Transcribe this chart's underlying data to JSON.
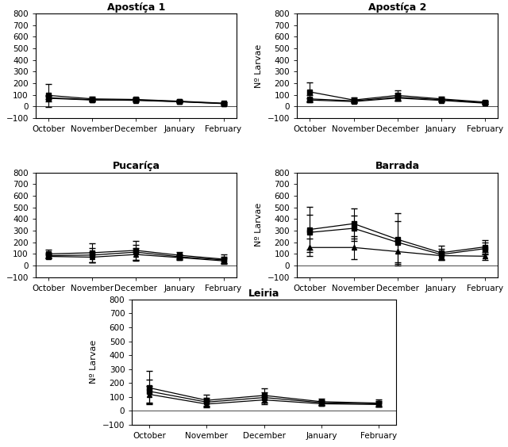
{
  "months": [
    "October",
    "November",
    "December",
    "January",
    "February"
  ],
  "subplots": [
    {
      "title": "Apostíça 1",
      "series": [
        {
          "y": [
            95,
            65,
            60,
            45,
            28
          ],
          "yerr": [
            100,
            20,
            20,
            10,
            10
          ],
          "marker": "s"
        },
        {
          "y": [
            70,
            55,
            55,
            42,
            25
          ],
          "yerr": [
            30,
            12,
            15,
            8,
            8
          ],
          "marker": "s"
        },
        {
          "y": [
            75,
            58,
            52,
            40,
            24
          ],
          "yerr": [
            15,
            10,
            12,
            6,
            6
          ],
          "marker": "^"
        }
      ]
    },
    {
      "title": "Apostíça 2",
      "series": [
        {
          "y": [
            125,
            55,
            95,
            65,
            38
          ],
          "yerr": [
            80,
            20,
            45,
            20,
            15
          ],
          "marker": "s"
        },
        {
          "y": [
            65,
            48,
            80,
            58,
            32
          ],
          "yerr": [
            30,
            15,
            30,
            15,
            10
          ],
          "marker": "s"
        },
        {
          "y": [
            55,
            42,
            72,
            52,
            28
          ],
          "yerr": [
            15,
            10,
            22,
            10,
            8
          ],
          "marker": "^"
        }
      ]
    },
    {
      "title": "Pucaríça",
      "series": [
        {
          "y": [
            100,
            110,
            130,
            88,
            55
          ],
          "yerr": [
            35,
            80,
            80,
            28,
            40
          ],
          "marker": "s"
        },
        {
          "y": [
            85,
            90,
            115,
            75,
            48
          ],
          "yerr": [
            25,
            60,
            65,
            22,
            30
          ],
          "marker": "s"
        },
        {
          "y": [
            78,
            72,
            95,
            68,
            40
          ],
          "yerr": [
            15,
            45,
            52,
            18,
            22
          ],
          "marker": "^"
        }
      ]
    },
    {
      "title": "Barrada",
      "series": [
        {
          "y": [
            310,
            360,
            225,
            110,
            160
          ],
          "yerr": [
            195,
            130,
            225,
            60,
            60
          ],
          "marker": "s"
        },
        {
          "y": [
            285,
            320,
            200,
            95,
            145
          ],
          "yerr": [
            150,
            110,
            185,
            45,
            50
          ],
          "marker": "s"
        },
        {
          "y": [
            155,
            155,
            120,
            85,
            80
          ],
          "yerr": [
            75,
            100,
            95,
            30,
            35
          ],
          "marker": "^"
        }
      ]
    },
    {
      "title": "Leiria",
      "series": [
        {
          "y": [
            165,
            75,
            110,
            65,
            55
          ],
          "yerr": [
            120,
            40,
            50,
            22,
            25
          ],
          "marker": "s"
        },
        {
          "y": [
            140,
            62,
            95,
            58,
            50
          ],
          "yerr": [
            85,
            30,
            38,
            18,
            18
          ],
          "marker": "s"
        },
        {
          "y": [
            118,
            48,
            78,
            50,
            45
          ],
          "yerr": [
            60,
            22,
            32,
            14,
            14
          ],
          "marker": "^"
        }
      ]
    }
  ],
  "ylim": [
    -100,
    800
  ],
  "yticks": [
    -100,
    0,
    100,
    200,
    300,
    400,
    500,
    600,
    700,
    800
  ],
  "line_color": "black",
  "marker_size": 4,
  "capsize": 3,
  "ylabel": "Nº Larvae",
  "background_color": "white",
  "title_fontsize": 9,
  "axis_fontsize": 7.5,
  "ylabel_fontsize": 8
}
